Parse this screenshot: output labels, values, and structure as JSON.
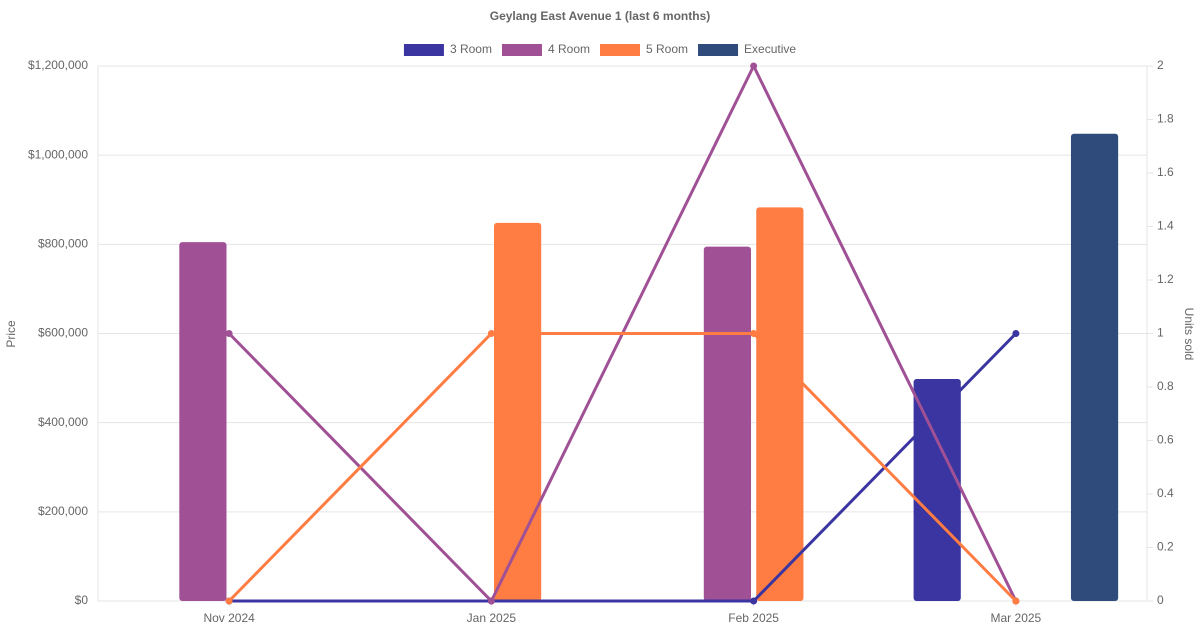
{
  "chart_data": {
    "type": "bar-line",
    "title": "Geylang East Avenue 1 (last 6 months)",
    "y_label": "Price",
    "y2_label": "Units sold",
    "categories": [
      "Nov 2024",
      "Jan 2025",
      "Feb 2025",
      "Mar 2025"
    ],
    "series": [
      {
        "name": "3 Room",
        "color": "#3a35a0",
        "values": [
          null,
          null,
          null,
          498000
        ],
        "units": [
          0,
          0,
          0,
          1
        ]
      },
      {
        "name": "4 Room",
        "color": "#a05195",
        "values": [
          805000,
          null,
          795000,
          null
        ],
        "units": [
          1,
          0,
          2,
          0
        ]
      },
      {
        "name": "5 Room",
        "color": "#ff7c43",
        "values": [
          null,
          848000,
          883000,
          null
        ],
        "units": [
          0,
          1,
          1,
          0
        ]
      },
      {
        "name": "Executive",
        "color": "#2f4b7c",
        "values": [
          null,
          null,
          null,
          1048000
        ]
      }
    ],
    "ylim": [
      0,
      1200000
    ],
    "yticks": [
      {
        "value": 0,
        "label": "$0"
      },
      {
        "value": 200000,
        "label": "$200,000"
      },
      {
        "value": 400000,
        "label": "$400,000"
      },
      {
        "value": 600000,
        "label": "$600,000"
      },
      {
        "value": 800000,
        "label": "$800,000"
      },
      {
        "value": 1000000,
        "label": "$1,000,000"
      },
      {
        "value": 1200000,
        "label": "$1,200,000"
      }
    ],
    "y2lim": [
      0,
      2
    ],
    "y2ticks": [
      0,
      0.2,
      0.4,
      0.6,
      0.8,
      1,
      1.2,
      1.4,
      1.6,
      1.8,
      2
    ],
    "grid": true,
    "legend": "top"
  }
}
